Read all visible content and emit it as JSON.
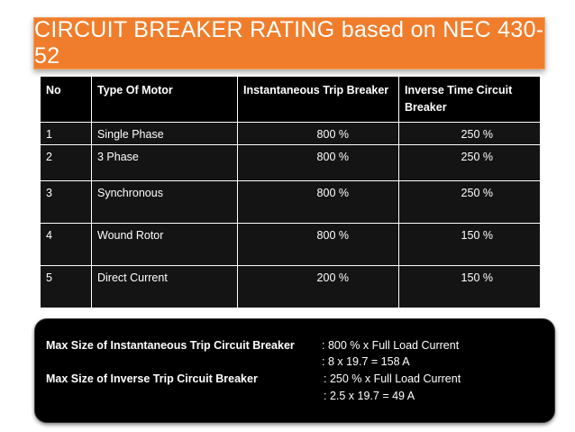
{
  "title": "CIRCUIT BREAKER RATING based on NEC 430-52",
  "table": {
    "headers": [
      "No",
      "Type Of Motor",
      "Instantaneous Trip Breaker",
      "Inverse Time Circuit Breaker"
    ],
    "rows": [
      {
        "no": "1",
        "type": "Single Phase",
        "inst": "800 %",
        "inverse": "250 %"
      },
      {
        "no": "2",
        "type": "3 Phase",
        "inst": "800 %",
        "inverse": "250 %"
      },
      {
        "no": "3",
        "type": "Synchronous",
        "inst": "800 %",
        "inverse": "250 %"
      },
      {
        "no": "4",
        "type": "Wound Rotor",
        "inst": "800 %",
        "inverse": "150 %"
      },
      {
        "no": "5",
        "type": "Direct Current",
        "inst": "200 %",
        "inverse": "150 %"
      }
    ]
  },
  "note": {
    "inst_label": "Max Size of Instantaneous Trip Circuit Breaker",
    "inst_formula": ": 800 % x Full Load Current",
    "inst_result": ": 8 x 19.7 = 158 A",
    "inverse_label": "Max Size of Inverse Trip Circuit Breaker",
    "inverse_formula": ": 250 % x Full Load Current",
    "inverse_result": ": 2.5 x 19.7 = 49 A"
  },
  "colors": {
    "title_bg": "#f07d2b",
    "table_bg": "#141414",
    "note_bg": "#000000"
  }
}
